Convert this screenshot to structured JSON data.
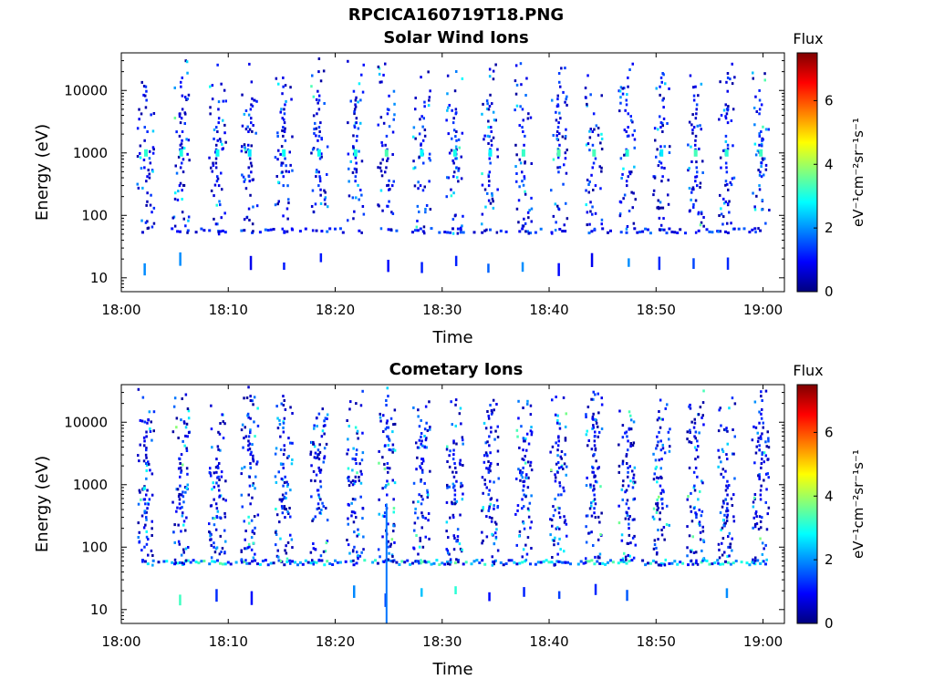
{
  "figure": {
    "filename_title": "RPCICA160719T18.PNG"
  },
  "chart_data": [
    {
      "type": "heatmap",
      "title": "Solar Wind Ions",
      "xlabel": "Time",
      "ylabel": "Energy (eV)",
      "x_ticks": [
        "18:00",
        "18:10",
        "18:20",
        "18:30",
        "18:40",
        "18:50",
        "19:00"
      ],
      "x_range_minutes": [
        0,
        62
      ],
      "y_scale": "log",
      "y_ticks": [
        10,
        100,
        1000,
        10000
      ],
      "ylim": [
        6,
        40000
      ],
      "colorbar": {
        "label": "Flux",
        "unit": "eV⁻¹cm⁻²sr⁻¹s⁻¹",
        "ticks": [
          0,
          2,
          4,
          6
        ],
        "range": [
          0,
          7.5
        ],
        "colormap": "jet"
      },
      "bursts_minutes": [
        2.3,
        5.6,
        9.0,
        12.0,
        15.2,
        18.5,
        21.9,
        24.8,
        28.1,
        31.2,
        34.5,
        37.6,
        40.9,
        44.2,
        47.3,
        50.5,
        53.7,
        56.6,
        59.8
      ],
      "flux_range_observed": [
        0,
        3.5
      ],
      "notes": "sparse low-flux ion counts along 1 keV line and ~60 eV floor"
    },
    {
      "type": "heatmap",
      "title": "Cometary Ions",
      "xlabel": "Time",
      "ylabel": "Energy (eV)",
      "x_ticks": [
        "18:00",
        "18:10",
        "18:20",
        "18:30",
        "18:40",
        "18:50",
        "19:00"
      ],
      "x_range_minutes": [
        0,
        62
      ],
      "y_scale": "log",
      "y_ticks": [
        10,
        100,
        1000,
        10000
      ],
      "ylim": [
        6,
        40000
      ],
      "colorbar": {
        "label": "Flux",
        "unit": "eV⁻¹cm⁻²sr⁻¹s⁻¹",
        "ticks": [
          0,
          2,
          4,
          6
        ],
        "range": [
          0,
          7.5
        ],
        "colormap": "jet"
      },
      "bursts_minutes": [
        2.3,
        5.6,
        9.0,
        12.0,
        15.2,
        18.5,
        21.9,
        24.8,
        28.1,
        31.2,
        34.5,
        37.6,
        40.9,
        44.2,
        47.3,
        50.5,
        53.7,
        56.6,
        59.8
      ],
      "flux_range_observed": [
        0,
        4.0
      ],
      "notes": "denser low-energy band near 60 eV, vertical streak at ~18:25"
    }
  ]
}
